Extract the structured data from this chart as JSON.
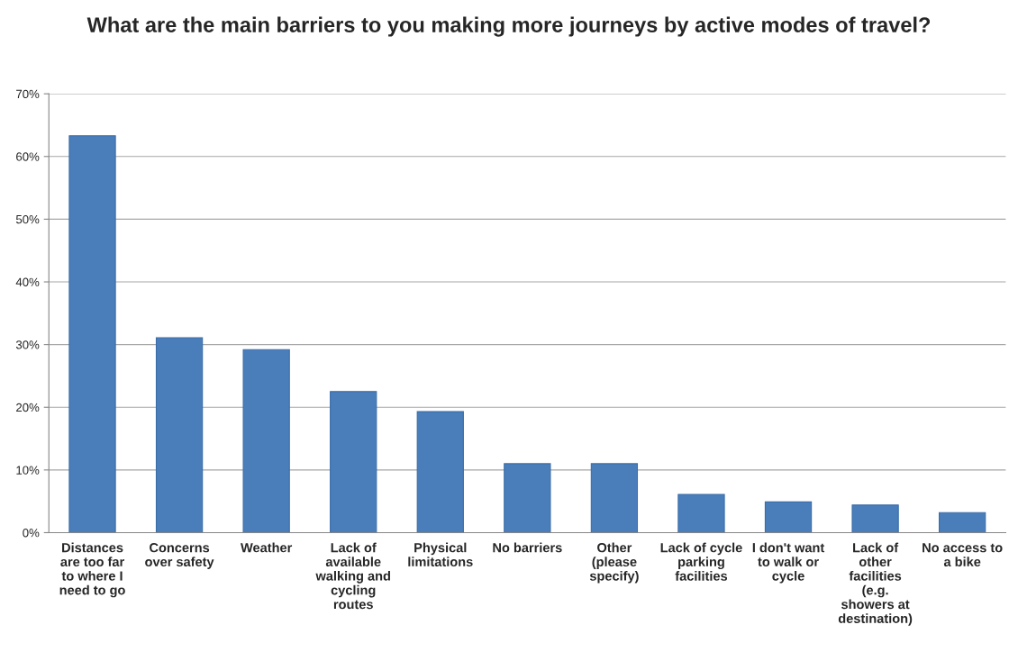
{
  "chart_data": {
    "type": "bar",
    "title": "What are the main barriers to you making more journeys by active modes of travel?",
    "categories": [
      "Distances\nare too far\nto where I\nneed to go",
      "Concerns\nover safety",
      "Weather",
      "Lack of\navailable\nwalking and\ncycling\nroutes",
      "Physical\nlimitations",
      "No barriers",
      "Other\n(please\nspecify)",
      "Lack of cycle\nparking\nfacilities",
      "I don't want\nto walk or\ncycle",
      "Lack of\nother\nfacilities\n(e.g.\nshowers at\ndestination)",
      "No access to\na bike"
    ],
    "values": [
      63.3,
      31.1,
      29.2,
      22.5,
      19.3,
      11,
      11,
      6.1,
      4.9,
      4.4,
      3.2
    ],
    "color": "#4a7ebb",
    "ylim": [
      0,
      70
    ],
    "yticks": [
      {
        "value": 0,
        "label": "0%"
      },
      {
        "value": 10,
        "label": "10%"
      },
      {
        "value": 20,
        "label": "20%"
      },
      {
        "value": 30,
        "label": "30%"
      },
      {
        "value": 40,
        "label": "40%"
      },
      {
        "value": 50,
        "label": "50%"
      },
      {
        "value": 60,
        "label": "60%"
      },
      {
        "value": 70,
        "label": "70%"
      }
    ],
    "grid": "y"
  }
}
